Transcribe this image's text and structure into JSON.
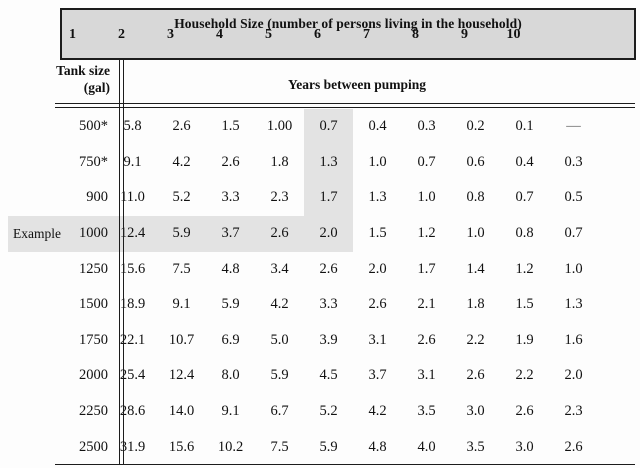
{
  "header": {
    "title": "Household Size (number of persons living in the household)",
    "columns": [
      "1",
      "2",
      "3",
      "4",
      "5",
      "6",
      "7",
      "8",
      "9",
      "10"
    ]
  },
  "stub_header": {
    "line1": "Tank size",
    "line2": "(gal)"
  },
  "years_label": "Years between pumping",
  "example_label": "Example",
  "colors": {
    "header_bg": "#d8d8d8",
    "highlight_bg": "#e3e3e3",
    "rule_color": "#1c1c1c"
  },
  "chart_data": {
    "type": "table",
    "title": "Household Size (number of persons living in the household)",
    "value_label": "Years between pumping",
    "row_label": "Tank size (gal)",
    "columns": [
      "1",
      "2",
      "3",
      "4",
      "5",
      "6",
      "7",
      "8",
      "9",
      "10"
    ],
    "highlight_column": "5",
    "highlight_row": "1000",
    "rows": [
      {
        "tank": "500*",
        "example": false,
        "values": [
          "5.8",
          "2.6",
          "1.5",
          "1.00",
          "0.7",
          "0.4",
          "0.3",
          "0.2",
          "0.1",
          "—"
        ]
      },
      {
        "tank": "750*",
        "example": false,
        "values": [
          "9.1",
          "4.2",
          "2.6",
          "1.8",
          "1.3",
          "1.0",
          "0.7",
          "0.6",
          "0.4",
          "0.3"
        ]
      },
      {
        "tank": "900",
        "example": false,
        "values": [
          "11.0",
          "5.2",
          "3.3",
          "2.3",
          "1.7",
          "1.3",
          "1.0",
          "0.8",
          "0.7",
          "0.5"
        ]
      },
      {
        "tank": "1000",
        "example": true,
        "values": [
          "12.4",
          "5.9",
          "3.7",
          "2.6",
          "2.0",
          "1.5",
          "1.2",
          "1.0",
          "0.8",
          "0.7"
        ]
      },
      {
        "tank": "1250",
        "example": false,
        "values": [
          "15.6",
          "7.5",
          "4.8",
          "3.4",
          "2.6",
          "2.0",
          "1.7",
          "1.4",
          "1.2",
          "1.0"
        ]
      },
      {
        "tank": "1500",
        "example": false,
        "values": [
          "18.9",
          "9.1",
          "5.9",
          "4.2",
          "3.3",
          "2.6",
          "2.1",
          "1.8",
          "1.5",
          "1.3"
        ]
      },
      {
        "tank": "1750",
        "example": false,
        "values": [
          "22.1",
          "10.7",
          "6.9",
          "5.0",
          "3.9",
          "3.1",
          "2.6",
          "2.2",
          "1.9",
          "1.6"
        ]
      },
      {
        "tank": "2000",
        "example": false,
        "values": [
          "25.4",
          "12.4",
          "8.0",
          "5.9",
          "4.5",
          "3.7",
          "3.1",
          "2.6",
          "2.2",
          "2.0"
        ]
      },
      {
        "tank": "2250",
        "example": false,
        "values": [
          "28.6",
          "14.0",
          "9.1",
          "6.7",
          "5.2",
          "4.2",
          "3.5",
          "3.0",
          "2.6",
          "2.3"
        ]
      },
      {
        "tank": "2500",
        "example": false,
        "values": [
          "31.9",
          "15.6",
          "10.2",
          "7.5",
          "5.9",
          "4.8",
          "4.0",
          "3.5",
          "3.0",
          "2.6"
        ]
      }
    ]
  }
}
